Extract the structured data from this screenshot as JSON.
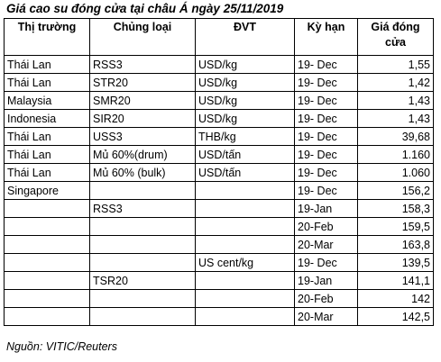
{
  "title": "Giá cao su đóng cửa tại châu Á ngày 25/11/2019",
  "headers": [
    "Thị trường",
    "Chủng loại",
    "ĐVT",
    "Kỳ hạn",
    "Giá đóng cửa"
  ],
  "rows": [
    [
      "Thái Lan",
      "RSS3",
      "USD/kg",
      "19- Dec",
      "1,55"
    ],
    [
      "Thái Lan",
      "STR20",
      "USD/kg",
      "19- Dec",
      "1,42"
    ],
    [
      "Malaysia",
      "SMR20",
      "USD/kg",
      "19- Dec",
      "1,43"
    ],
    [
      "Indonesia",
      "SIR20",
      "USD/kg",
      "19- Dec",
      "1,43"
    ],
    [
      "Thái Lan",
      "USS3",
      "THB/kg",
      "19- Dec",
      "39,68"
    ],
    [
      "Thái Lan",
      "Mủ 60%(drum)",
      "USD/tấn",
      "19- Dec",
      "1.160"
    ],
    [
      "Thái Lan",
      "Mủ 60% (bulk)",
      "USD/tấn",
      "19- Dec",
      "1.060"
    ],
    [
      "Singapore",
      "",
      "",
      "19- Dec",
      "156,2"
    ],
    [
      "",
      "RSS3",
      "",
      "19-Jan",
      "158,3"
    ],
    [
      "",
      "",
      "",
      "20-Feb",
      "159,5"
    ],
    [
      "",
      "",
      "",
      "20-Mar",
      "163,8"
    ],
    [
      "",
      "",
      "US cent/kg",
      "19- Dec",
      "139,5"
    ],
    [
      "",
      "TSR20",
      "",
      "19-Jan",
      "141,1"
    ],
    [
      "",
      "",
      "",
      "20-Feb",
      "142"
    ],
    [
      "",
      "",
      "",
      "20-Mar",
      "142,5"
    ]
  ],
  "source": "Nguồn: VITIC/Reuters"
}
